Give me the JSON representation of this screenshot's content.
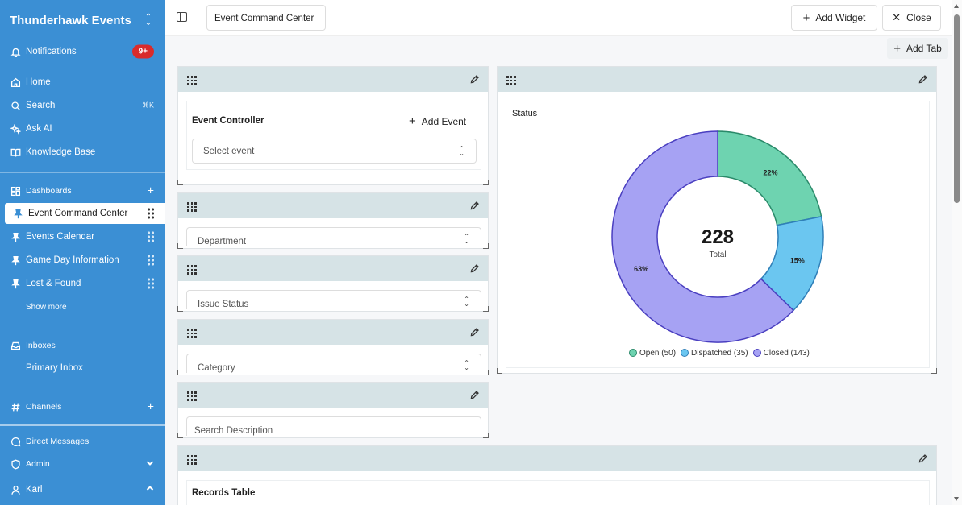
{
  "sidebar": {
    "brand": "Thunderhawk Events",
    "notifications": {
      "label": "Notifications",
      "badge": "9+"
    },
    "home": "Home",
    "search": {
      "label": "Search",
      "shortcut": "⌘K"
    },
    "ask_ai": "Ask AI",
    "knowledge_base": "Knowledge Base",
    "dashboards": "Dashboards",
    "dashboard_items": [
      "Event Command Center",
      "Events Calendar",
      "Game Day Information",
      "Lost & Found"
    ],
    "show_more": "Show more",
    "inboxes": "Inboxes",
    "primary_inbox": "Primary Inbox",
    "channels": "Channels",
    "direct_messages": "Direct Messages",
    "admin": "Admin",
    "user": "Karl"
  },
  "topbar": {
    "tab_name": "Event Command Center",
    "add_widget": "Add Widget",
    "close": "Close",
    "add_tab": "Add Tab"
  },
  "widgets": {
    "event_controller": {
      "title": "Event Controller",
      "add_event": "Add Event",
      "select_placeholder": "Select event"
    },
    "department": "Department",
    "issue_status": "Issue Status",
    "category": "Category",
    "search_description": "Search Description",
    "records_table": "Records Table"
  },
  "chart_data": {
    "type": "pie",
    "title": "Status",
    "center_value": "228",
    "center_label": "Total",
    "slices": [
      {
        "name": "Open",
        "value": 50,
        "label": "22%",
        "legend": "Open (50)",
        "color": "#6ed3b0",
        "stroke": "#2a8a6a"
      },
      {
        "name": "Dispatched",
        "value": 35,
        "label": "15%",
        "legend": "Dispatched (35)",
        "color": "#6bc6f0",
        "stroke": "#2f7fb8"
      },
      {
        "name": "Closed",
        "value": 143,
        "label": "63%",
        "legend": "Closed (143)",
        "color": "#a6a2f3",
        "stroke": "#4a3fc0"
      }
    ],
    "legend_position": "bottom"
  },
  "colors": {
    "sidebar": "#3b8fd4",
    "badge": "#d92b2b",
    "widget_header": "#d6e3e6",
    "annotation_arrow": "#e8692a"
  }
}
